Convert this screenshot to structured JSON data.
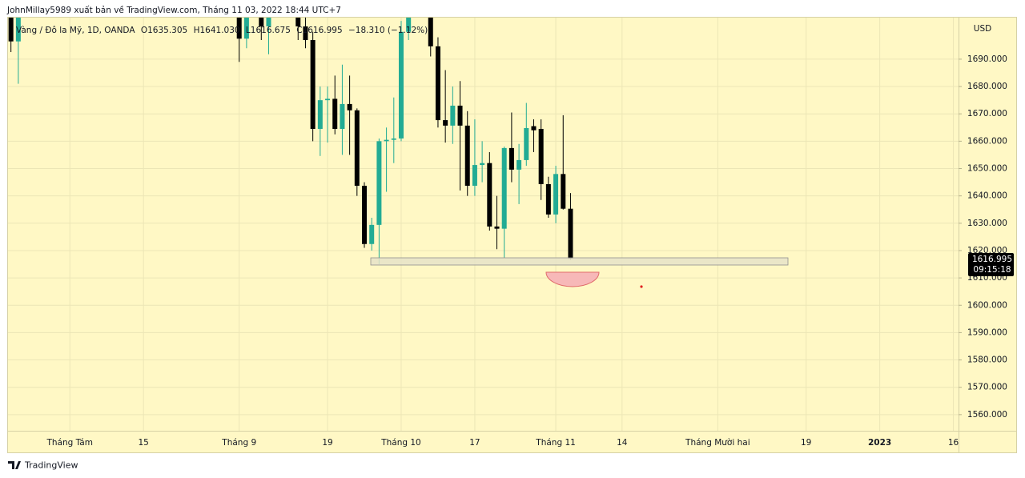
{
  "header": {
    "publisher": "JohnMillay5989 xuất bản về TradingView.com, Tháng 11 03, 2022 18:44 UTC+7",
    "footer_brand": "TradingView"
  },
  "chart_data": {
    "type": "candlestick",
    "symbol": "Vàng / Đô la Mỹ, 1D, OANDA",
    "ohlc_legend": [
      "O1635.305",
      "H1641.030",
      "L1616.675",
      "C1616.995",
      "−18.310 (−1.12%)"
    ],
    "currency": "USD",
    "countdown": "09:15:18",
    "up_color": "#22ab94",
    "down_color": "#000000",
    "grid": true,
    "xlim": [
      -8.4,
      120.7
    ],
    "xticks": [
      {
        "value": 0,
        "label": "Tháng Tám"
      },
      {
        "value": 10,
        "label": "15"
      },
      {
        "value": 23,
        "label": "Tháng 9"
      },
      {
        "value": 35,
        "label": "19"
      },
      {
        "value": 45,
        "label": "Tháng 10"
      },
      {
        "value": 55,
        "label": "17"
      },
      {
        "value": 66,
        "label": "Tháng 11"
      },
      {
        "value": 75,
        "label": "14"
      },
      {
        "value": 88,
        "label": "Tháng Mười hai"
      },
      {
        "value": 100,
        "label": "19"
      },
      {
        "value": 110,
        "label": "2023"
      },
      {
        "value": 120,
        "label": "16"
      }
    ],
    "ylim": [
      1554.1,
      1705.2
    ],
    "yticks": [
      {
        "value": 1560,
        "label": "1560.000"
      },
      {
        "value": 1570,
        "label": "1570.000"
      },
      {
        "value": 1580,
        "label": "1580.000"
      },
      {
        "value": 1590,
        "label": "1590.000"
      },
      {
        "value": 1600,
        "label": "1600.000"
      },
      {
        "value": 1610,
        "label": "1610.000"
      },
      {
        "value": 1620,
        "label": "1620.000"
      },
      {
        "value": 1630,
        "label": "1630.000"
      },
      {
        "value": 1640,
        "label": "1640.000"
      },
      {
        "value": 1650,
        "label": "1650.000"
      },
      {
        "value": 1660,
        "label": "1660.000"
      },
      {
        "value": 1670,
        "label": "1670.000"
      },
      {
        "value": 1680,
        "label": "1680.000"
      },
      {
        "value": 1690,
        "label": "1690.000"
      }
    ],
    "candles": {
      "x": [
        -8,
        -7,
        23,
        24,
        25,
        26,
        27,
        28,
        29,
        30,
        31,
        32,
        33,
        34,
        35,
        36,
        37,
        38,
        39,
        40,
        41,
        42,
        43,
        44,
        45,
        46,
        47,
        48,
        49,
        50,
        51,
        52,
        53,
        54,
        55,
        56,
        57,
        58,
        59,
        60,
        61,
        62,
        63,
        64,
        65,
        66,
        67,
        68
      ],
      "open": [
        1710,
        1696.5,
        1711,
        1697.5,
        1712,
        1710,
        1702,
        1718,
        1712,
        1716,
        1725,
        1702,
        1697,
        1664.5,
        1675,
        1675.5,
        1664.5,
        1673.6,
        1671.3,
        1643.7,
        1622.4,
        1629.4,
        1660,
        1660.5,
        1661,
        1700,
        1725,
        1716,
        1712,
        1694.7,
        1667.7,
        1665.7,
        1673,
        1665.7,
        1643.7,
        1651.3,
        1652,
        1628.8,
        1628,
        1657.5,
        1649.6,
        1653.1,
        1665.5,
        1664.5,
        1644.3,
        1633.2,
        1648,
        1635.305
      ],
      "high": [
        1712,
        1720,
        1712,
        1717,
        1718,
        1717,
        1719,
        1729,
        1726,
        1735,
        1729,
        1707,
        1700,
        1680,
        1680,
        1684,
        1688,
        1684,
        1672,
        1645,
        1632,
        1661,
        1665,
        1676,
        1704,
        1729,
        1730,
        1721,
        1721,
        1698,
        1686,
        1680,
        1682,
        1671,
        1668,
        1660,
        1656,
        1640,
        1658,
        1670.5,
        1659,
        1674,
        1668,
        1668,
        1647,
        1651,
        1669.5,
        1641.03
      ],
      "low": [
        1692.6,
        1681,
        1689,
        1694,
        1706,
        1697,
        1691.8,
        1706,
        1711,
        1715,
        1697,
        1694,
        1660,
        1654.6,
        1659.5,
        1662.5,
        1655,
        1655,
        1640,
        1621,
        1620,
        1615,
        1641.5,
        1652,
        1660,
        1697,
        1708,
        1706,
        1691,
        1665,
        1659.5,
        1659,
        1642,
        1640,
        1640,
        1645,
        1627.3,
        1620.5,
        1617.4,
        1645,
        1637,
        1651,
        1656,
        1638.5,
        1632,
        1630,
        1635,
        1616.675
      ],
      "close": [
        1696.5,
        1718,
        1697.5,
        1712,
        1710,
        1702,
        1718,
        1712,
        1716,
        1725,
        1702,
        1697,
        1664.5,
        1675,
        1675.5,
        1664.5,
        1673.6,
        1671.3,
        1643.7,
        1622.4,
        1629.4,
        1660,
        1660.5,
        1661,
        1700,
        1725,
        1716,
        1712,
        1694.7,
        1667.7,
        1665.7,
        1673,
        1665.7,
        1643.7,
        1651.3,
        1652,
        1628.8,
        1628,
        1657.5,
        1649.6,
        1653.1,
        1664.8,
        1664,
        1644.3,
        1633.2,
        1648,
        1635.305,
        1616.995
      ]
    }
  }
}
